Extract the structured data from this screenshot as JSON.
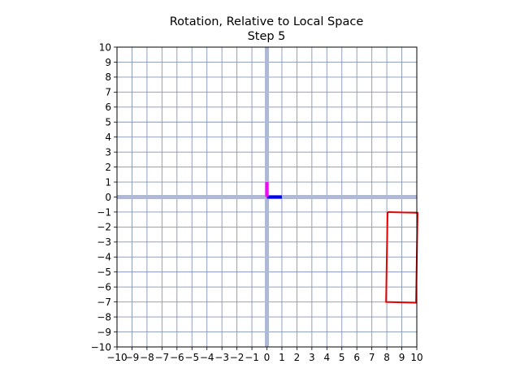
{
  "chart_data": {
    "type": "line",
    "title": "Rotation, Relative to Local Space",
    "subtitle": "Step 5",
    "xlabel": "",
    "ylabel": "",
    "xlim": [
      -10,
      10
    ],
    "ylim": [
      -10,
      10
    ],
    "xticks": [
      "−10",
      "−9",
      "−8",
      "−7",
      "−6",
      "−5",
      "−4",
      "−3",
      "−2",
      "−1",
      "0",
      "1",
      "2",
      "3",
      "4",
      "5",
      "6",
      "7",
      "8",
      "9",
      "10"
    ],
    "yticks": [
      "10",
      "9",
      "8",
      "7",
      "6",
      "5",
      "4",
      "3",
      "2",
      "1",
      "0",
      "−1",
      "−2",
      "−3",
      "−4",
      "−5",
      "−6",
      "−7",
      "−8",
      "−9",
      "−10"
    ],
    "grid": true,
    "series": [
      {
        "kind": "x-axis-highlight",
        "color": "#b0b9d4",
        "x": [
          -10,
          10
        ],
        "y": [
          0,
          0
        ]
      },
      {
        "kind": "y-axis-highlight",
        "color": "#b0b9d4",
        "x": [
          0,
          0
        ],
        "y": [
          -10,
          10
        ]
      },
      {
        "kind": "local-x-basis",
        "color": "#0000ff",
        "x": [
          0,
          1
        ],
        "y": [
          0,
          0
        ]
      },
      {
        "kind": "local-y-basis",
        "color": "#ff00ff",
        "x": [
          0,
          0
        ],
        "y": [
          0,
          1
        ]
      },
      {
        "kind": "rotated-rectangle",
        "color": "#e60000",
        "x": [
          8.05,
          10.05,
          9.95,
          7.95,
          8.05
        ],
        "y": [
          -1.0,
          -1.05,
          -7.05,
          -7.0,
          -1.0
        ]
      }
    ]
  }
}
